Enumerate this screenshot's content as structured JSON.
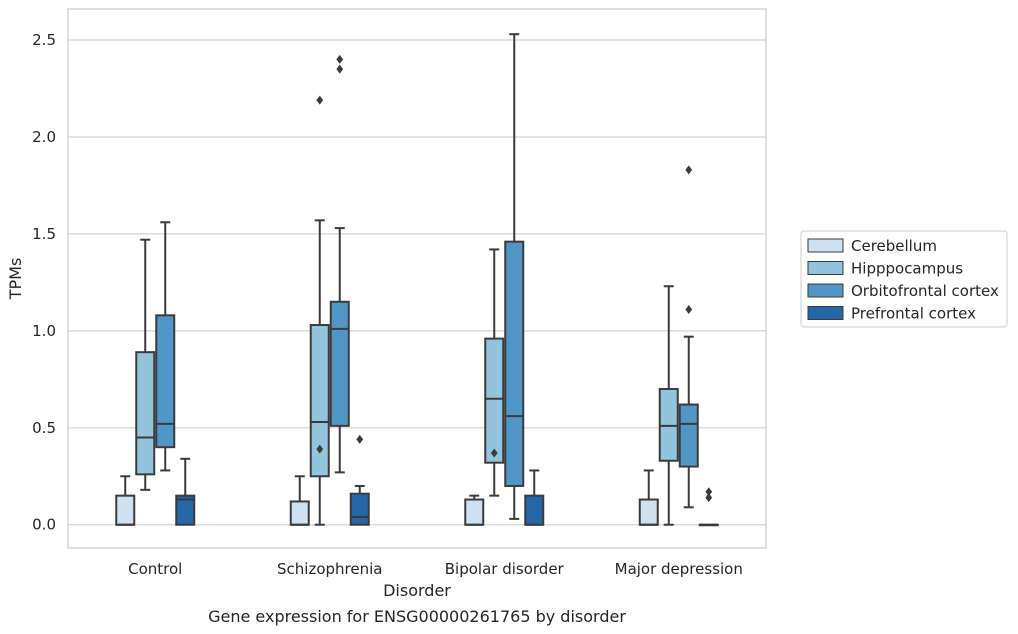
{
  "chart_data": {
    "type": "box",
    "title": "",
    "caption": "Gene expression for ENSG00000261765 by disorder",
    "xlabel": "Disorder",
    "ylabel": "TPMs",
    "ylim": [
      -0.12,
      2.66
    ],
    "yticks": [
      0.0,
      0.5,
      1.0,
      1.5,
      2.0,
      2.5
    ],
    "ytick_labels": [
      "0.0",
      "0.5",
      "1.0",
      "1.5",
      "2.0",
      "2.5"
    ],
    "grid": "horizontal",
    "legend_position": "right",
    "categories": [
      "Control",
      "Schizophrenia",
      "Bipolar disorder",
      "Major depression"
    ],
    "series": [
      {
        "name": "Cerebellum",
        "color": "#cfe0f1",
        "boxes": [
          {
            "min": 0.0,
            "q1": 0.0,
            "median": 0.0,
            "q3": 0.15,
            "max": 0.25,
            "outliers": []
          },
          {
            "min": 0.0,
            "q1": 0.0,
            "median": 0.0,
            "q3": 0.12,
            "max": 0.25,
            "outliers": []
          },
          {
            "min": 0.0,
            "q1": 0.0,
            "median": 0.0,
            "q3": 0.13,
            "max": 0.15,
            "outliers": []
          },
          {
            "min": 0.0,
            "q1": 0.0,
            "median": 0.0,
            "q3": 0.13,
            "max": 0.28,
            "outliers": []
          }
        ]
      },
      {
        "name": "Hipppocampus",
        "color": "#93c4de",
        "boxes": [
          {
            "min": 0.18,
            "q1": 0.26,
            "median": 0.45,
            "q3": 0.89,
            "max": 1.47,
            "outliers": []
          },
          {
            "min": 0.0,
            "q1": 0.25,
            "median": 0.53,
            "q3": 1.03,
            "max": 1.57,
            "outliers": [
              0.39,
              2.19
            ]
          },
          {
            "min": 0.15,
            "q1": 0.32,
            "median": 0.65,
            "q3": 0.96,
            "max": 1.42,
            "outliers": [
              0.37
            ]
          },
          {
            "min": 0.0,
            "q1": 0.33,
            "median": 0.51,
            "q3": 0.7,
            "max": 1.23,
            "outliers": []
          }
        ]
      },
      {
        "name": "Orbitofrontal cortex",
        "color": "#5096c6",
        "boxes": [
          {
            "min": 0.28,
            "q1": 0.4,
            "median": 0.52,
            "q3": 1.08,
            "max": 1.56,
            "outliers": []
          },
          {
            "min": 0.27,
            "q1": 0.51,
            "median": 1.01,
            "q3": 1.15,
            "max": 1.53,
            "outliers": [
              2.35,
              2.4
            ]
          },
          {
            "min": 0.03,
            "q1": 0.2,
            "median": 0.56,
            "q3": 1.46,
            "max": 2.53,
            "outliers": []
          },
          {
            "min": 0.09,
            "q1": 0.3,
            "median": 0.52,
            "q3": 0.62,
            "max": 0.97,
            "outliers": [
              1.11,
              1.83
            ]
          }
        ]
      },
      {
        "name": "Prefrontal cortex",
        "color": "#2467a8",
        "boxes": [
          {
            "min": 0.0,
            "q1": 0.0,
            "median": 0.13,
            "q3": 0.15,
            "max": 0.34,
            "outliers": []
          },
          {
            "min": 0.0,
            "q1": 0.0,
            "median": 0.04,
            "q3": 0.16,
            "max": 0.2,
            "outliers": [
              0.44
            ]
          },
          {
            "min": 0.0,
            "q1": 0.0,
            "median": 0.0,
            "q3": 0.15,
            "max": 0.28,
            "outliers": []
          },
          {
            "min": 0.0,
            "q1": 0.0,
            "median": 0.0,
            "q3": 0.0,
            "max": 0.0,
            "outliers": [
              0.14,
              0.17
            ]
          }
        ]
      }
    ]
  }
}
